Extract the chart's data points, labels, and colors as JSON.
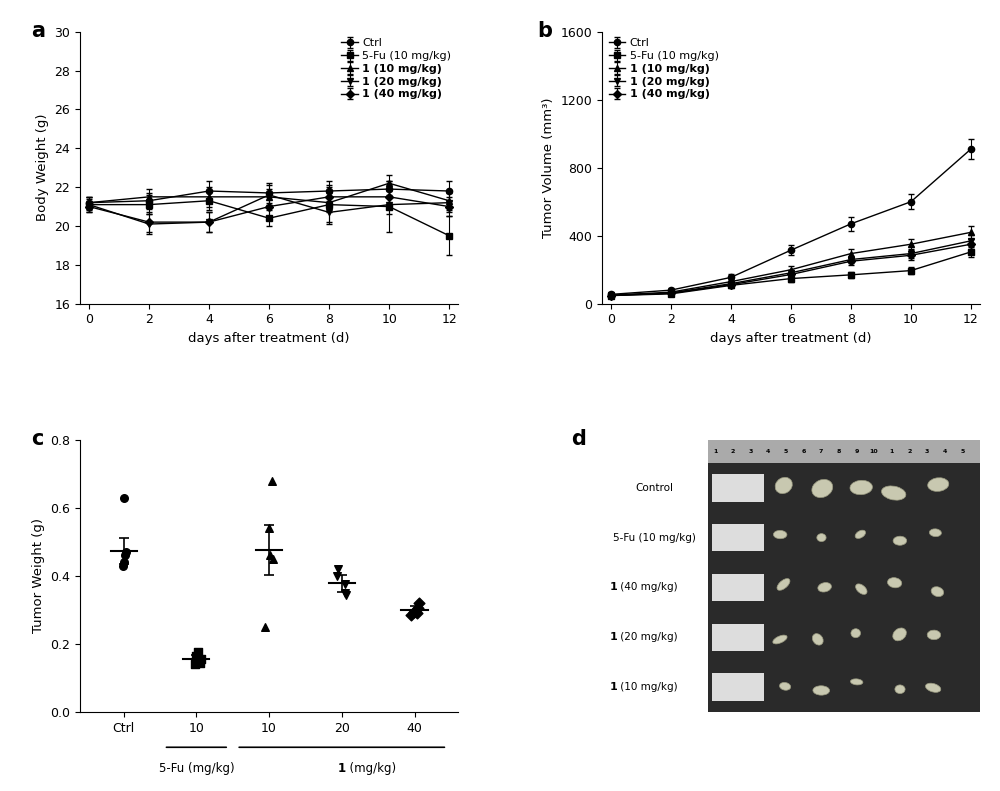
{
  "panel_a": {
    "xlabel": "days after treatment (d)",
    "ylabel": "Body Weight (g)",
    "xlim": [
      -0.3,
      12.3
    ],
    "ylim": [
      16,
      30
    ],
    "yticks": [
      16,
      18,
      20,
      22,
      24,
      26,
      28,
      30
    ],
    "xticks": [
      0,
      2,
      4,
      6,
      8,
      10,
      12
    ],
    "days": [
      0,
      2,
      4,
      6,
      8,
      10,
      12
    ],
    "series": {
      "Ctrl": {
        "mean": [
          21.2,
          21.3,
          21.8,
          21.7,
          21.8,
          21.9,
          21.8
        ],
        "err": [
          0.3,
          0.4,
          0.5,
          0.5,
          0.5,
          0.4,
          0.5
        ]
      },
      "5-Fu (10 mg/kg)": {
        "mean": [
          21.1,
          21.1,
          21.3,
          20.4,
          21.1,
          21.0,
          19.5
        ],
        "err": [
          0.4,
          0.5,
          0.5,
          0.4,
          1.0,
          1.3,
          1.0
        ]
      },
      "1 (10 mg/kg)": {
        "mean": [
          21.2,
          21.5,
          21.5,
          21.5,
          21.2,
          22.2,
          21.3
        ],
        "err": [
          0.3,
          0.4,
          0.5,
          0.4,
          0.5,
          0.4,
          0.5
        ]
      },
      "1 (20 mg/kg)": {
        "mean": [
          21.1,
          20.1,
          20.2,
          21.6,
          20.7,
          21.1,
          21.2
        ],
        "err": [
          0.3,
          0.5,
          0.5,
          0.5,
          0.5,
          0.5,
          0.5
        ]
      },
      "1 (40 mg/kg)": {
        "mean": [
          21.0,
          20.2,
          20.2,
          21.0,
          21.5,
          21.5,
          21.0
        ],
        "err": [
          0.3,
          0.5,
          0.5,
          0.5,
          0.5,
          0.5,
          0.5
        ]
      }
    }
  },
  "panel_b": {
    "xlabel": "days after treatment (d)",
    "ylabel": "Tumor Volume (mm³)",
    "xlim": [
      -0.3,
      12.3
    ],
    "ylim": [
      0,
      1600
    ],
    "yticks": [
      0,
      400,
      800,
      1200,
      1600
    ],
    "xticks": [
      0,
      2,
      4,
      6,
      8,
      10,
      12
    ],
    "days": [
      0,
      2,
      4,
      6,
      8,
      10,
      12
    ],
    "series": {
      "Ctrl": {
        "mean": [
          55,
          80,
          155,
          315,
          470,
          600,
          910
        ],
        "err": [
          10,
          12,
          18,
          28,
          40,
          45,
          58
        ]
      },
      "5-Fu (10 mg/kg)": {
        "mean": [
          48,
          58,
          108,
          148,
          170,
          195,
          305
        ],
        "err": [
          7,
          9,
          14,
          18,
          18,
          22,
          28
        ]
      },
      "1 (10 mg/kg)": {
        "mean": [
          50,
          68,
          130,
          200,
          295,
          350,
          420
        ],
        "err": [
          8,
          11,
          17,
          20,
          28,
          32,
          38
        ]
      },
      "1 (20 mg/kg)": {
        "mean": [
          50,
          63,
          118,
          182,
          260,
          295,
          370
        ],
        "err": [
          7,
          9,
          15,
          19,
          23,
          28,
          33
        ]
      },
      "1 (40 mg/kg)": {
        "mean": [
          48,
          62,
          112,
          172,
          250,
          285,
          350
        ],
        "err": [
          7,
          9,
          14,
          17,
          20,
          26,
          30
        ]
      }
    }
  },
  "panel_c": {
    "ylabel": "Tumor Weight (g)",
    "ylim": [
      0.0,
      0.8
    ],
    "yticks": [
      0.0,
      0.2,
      0.4,
      0.6,
      0.8
    ],
    "xlabel_groups": [
      "Ctrl",
      "10",
      "10",
      "20",
      "40"
    ],
    "groups": {
      "Ctrl": {
        "points": [
          0.63,
          0.47,
          0.46,
          0.44,
          0.43
        ],
        "mean": 0.474,
        "err": 0.038
      },
      "5Fu_10": {
        "points": [
          0.175,
          0.165,
          0.145,
          0.155,
          0.14
        ],
        "mean": 0.156,
        "err": 0.012
      },
      "1_10": {
        "points": [
          0.68,
          0.54,
          0.46,
          0.45,
          0.25
        ],
        "mean": 0.476,
        "err": 0.073
      },
      "1_20": {
        "points": [
          0.42,
          0.4,
          0.375,
          0.35,
          0.345
        ],
        "mean": 0.378,
        "err": 0.025
      },
      "1_40": {
        "points": [
          0.32,
          0.305,
          0.295,
          0.29,
          0.285
        ],
        "mean": 0.299,
        "err": 0.013
      }
    }
  },
  "panel_d": {
    "bg_color": "#2a2a2a",
    "ruler_color": "#888888",
    "label_bg_color": "#cccccc",
    "group_labels": [
      "Control",
      "5-Fu (10 mg/kg)",
      "1 (40 mg/kg)",
      "1 (20 mg/kg)",
      "1 (10 mg/kg)"
    ],
    "bold_labels": [
      "1 (40 mg/kg)",
      "1 (20 mg/kg)",
      "1 (10 mg/kg)"
    ],
    "ruler_numbers": [
      "1",
      "2",
      "3",
      "4",
      "5",
      "6",
      "7",
      "8",
      "9",
      "10",
      "1",
      "2",
      "3",
      "4",
      "5"
    ]
  },
  "legend_labels": [
    "Ctrl",
    "5-Fu (10 mg/kg)",
    "1 (10 mg/kg)",
    "1 (20 mg/kg)",
    "1 (40 mg/kg)"
  ],
  "markers": [
    "o",
    "s",
    "^",
    "v",
    "D"
  ],
  "black": "#000000"
}
